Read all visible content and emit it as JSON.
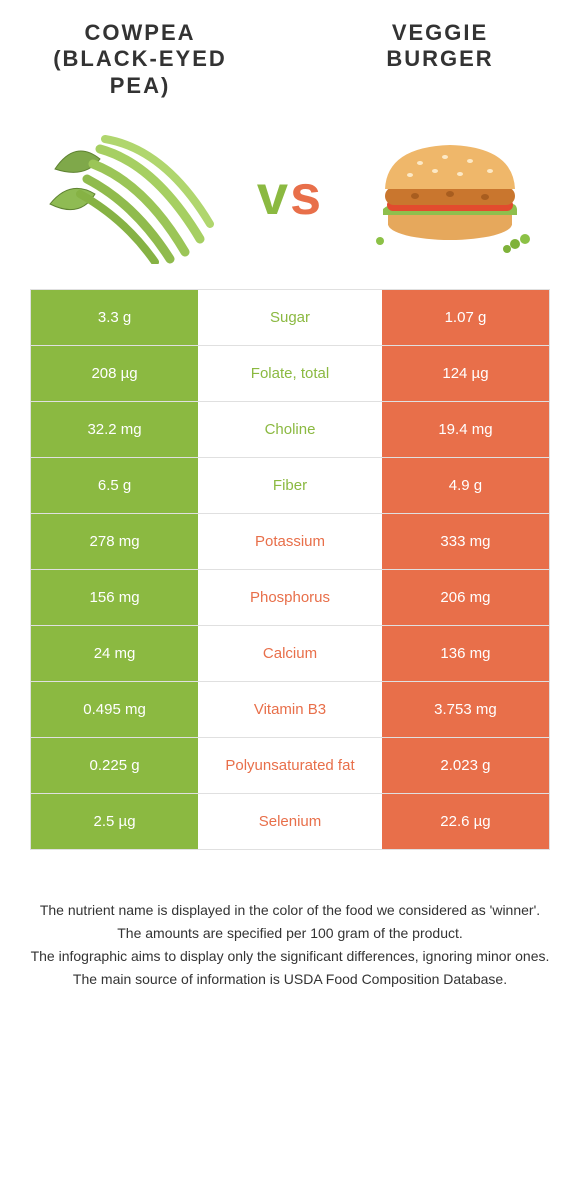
{
  "title_left": "Cowpea (Black-eyed pea)",
  "title_right": "Veggie Burger",
  "vs_label": "vs",
  "left_color": "#8bb941",
  "right_color": "#e86f4a",
  "vs_left_color": "#8bb941",
  "vs_right_color": "#e86f4a",
  "rows": [
    {
      "nutrient": "Sugar",
      "left": "3.3 g",
      "right": "1.07 g",
      "winner": "left"
    },
    {
      "nutrient": "Folate, total",
      "left": "208 µg",
      "right": "124 µg",
      "winner": "left"
    },
    {
      "nutrient": "Choline",
      "left": "32.2 mg",
      "right": "19.4 mg",
      "winner": "left"
    },
    {
      "nutrient": "Fiber",
      "left": "6.5 g",
      "right": "4.9 g",
      "winner": "left"
    },
    {
      "nutrient": "Potassium",
      "left": "278 mg",
      "right": "333 mg",
      "winner": "right"
    },
    {
      "nutrient": "Phosphorus",
      "left": "156 mg",
      "right": "206 mg",
      "winner": "right"
    },
    {
      "nutrient": "Calcium",
      "left": "24 mg",
      "right": "136 mg",
      "winner": "right"
    },
    {
      "nutrient": "Vitamin B3",
      "left": "0.495 mg",
      "right": "3.753 mg",
      "winner": "right"
    },
    {
      "nutrient": "Polyunsaturated fat",
      "left": "0.225 g",
      "right": "2.023 g",
      "winner": "right"
    },
    {
      "nutrient": "Selenium",
      "left": "2.5 µg",
      "right": "22.6 µg",
      "winner": "right"
    }
  ],
  "footer": [
    "The nutrient name is displayed in the color of the food we considered as 'winner'.",
    "The amounts are specified per 100 gram of the product.",
    "The infographic aims to display only the significant differences, ignoring minor ones.",
    "The main source of information is USDA Food Composition Database."
  ]
}
